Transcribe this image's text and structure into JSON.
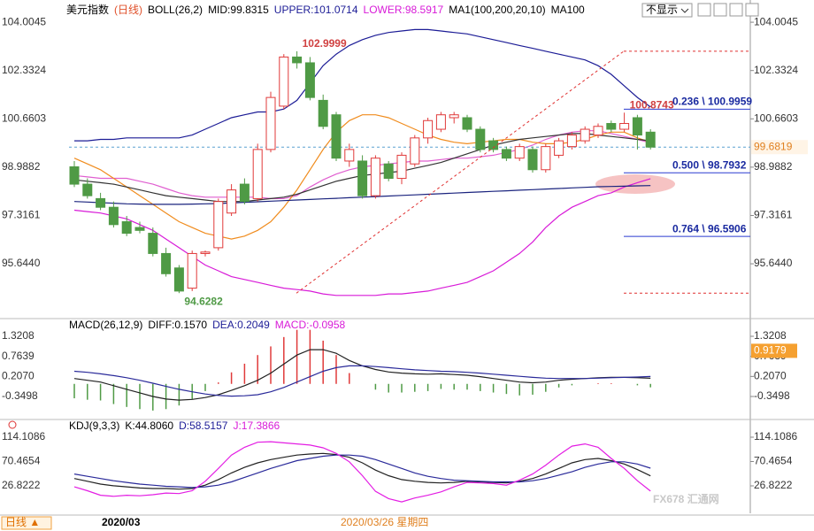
{
  "header": {
    "hide_button": "不显示",
    "period_button": "日线 ▲",
    "date_start": "2020/03",
    "date_cursor": "2020/03/26 星期四",
    "watermark": "FX678 汇通网"
  },
  "chart_data": [
    {
      "type": "candlestick",
      "legend": [
        {
          "text": "美元指数",
          "color": "#000000"
        },
        {
          "text": "(日线)",
          "color": "#e0502a"
        },
        {
          "text": "BOLL(26,2)",
          "color": "#000000"
        },
        {
          "text": "MID:99.8315",
          "color": "#000000"
        },
        {
          "text": "UPPER:101.0714",
          "color": "#1c1c96"
        },
        {
          "text": "LOWER:98.5917",
          "color": "#d81bd8"
        },
        {
          "text": "MA1(100,200,20,10)",
          "color": "#000000"
        },
        {
          "text": "MA100",
          "color": "#000000"
        }
      ],
      "ylim": [
        93.9,
        104.62
      ],
      "yticks": [
        104.0045,
        102.3324,
        100.6603,
        98.9882,
        97.3161,
        {
          "value": 95.644,
          "label": "95.6440"
        }
      ],
      "up_color": "#e03a3a",
      "down_color": "#4f9a45",
      "candles": [
        {
          "open": 99.0,
          "high": 99.2,
          "low": 98.3,
          "close": 98.4
        },
        {
          "open": 98.4,
          "high": 98.6,
          "low": 97.9,
          "close": 98.0
        },
        {
          "open": 97.9,
          "high": 98.1,
          "low": 97.5,
          "close": 97.6
        },
        {
          "open": 97.6,
          "high": 97.8,
          "low": 96.9,
          "close": 97.0
        },
        {
          "open": 97.1,
          "high": 97.3,
          "low": 96.6,
          "close": 96.7
        },
        {
          "open": 96.9,
          "high": 97.1,
          "low": 96.7,
          "close": 96.8
        },
        {
          "open": 96.7,
          "high": 96.9,
          "low": 95.9,
          "close": 96.0
        },
        {
          "open": 96.0,
          "high": 96.2,
          "low": 95.2,
          "close": 95.3
        },
        {
          "open": 95.5,
          "high": 95.6,
          "low": 94.6282,
          "close": 94.7
        },
        {
          "open": 94.8,
          "high": 96.1,
          "low": 94.7,
          "close": 96.0
        },
        {
          "open": 96.0,
          "high": 96.1,
          "low": 95.9,
          "close": 96.05
        },
        {
          "open": 96.2,
          "high": 97.9,
          "low": 96.1,
          "close": 97.8
        },
        {
          "open": 97.4,
          "high": 98.4,
          "low": 97.3,
          "close": 98.2
        },
        {
          "open": 98.4,
          "high": 98.6,
          "low": 97.7,
          "close": 97.8
        },
        {
          "open": 97.9,
          "high": 99.8,
          "low": 97.8,
          "close": 99.6
        },
        {
          "open": 99.6,
          "high": 101.6,
          "low": 99.5,
          "close": 101.4
        },
        {
          "open": 101.1,
          "high": 102.9,
          "low": 101.0,
          "close": 102.8
        },
        {
          "open": 102.8,
          "high": 102.9999,
          "low": 102.4,
          "close": 102.6
        },
        {
          "open": 102.6,
          "high": 102.8,
          "low": 101.3,
          "close": 101.4
        },
        {
          "open": 101.3,
          "high": 101.5,
          "low": 100.3,
          "close": 100.4
        },
        {
          "open": 100.8,
          "high": 100.9,
          "low": 99.2,
          "close": 99.3
        },
        {
          "open": 99.2,
          "high": 99.8,
          "low": 99.0,
          "close": 99.6
        },
        {
          "open": 99.2,
          "high": 99.4,
          "low": 97.9,
          "close": 98.0
        },
        {
          "open": 98.0,
          "high": 99.4,
          "low": 97.9,
          "close": 99.3
        },
        {
          "open": 99.1,
          "high": 99.2,
          "low": 98.5,
          "close": 98.6
        },
        {
          "open": 98.6,
          "high": 99.5,
          "low": 98.4,
          "close": 99.4
        },
        {
          "open": 99.1,
          "high": 100.1,
          "low": 99.0,
          "close": 100.0
        },
        {
          "open": 100.0,
          "high": 100.7,
          "low": 99.8,
          "close": 100.6
        },
        {
          "open": 100.3,
          "high": 100.9,
          "low": 100.2,
          "close": 100.8
        },
        {
          "open": 100.7,
          "high": 100.9,
          "low": 100.5,
          "close": 100.8
        },
        {
          "open": 100.7,
          "high": 100.8,
          "low": 100.2,
          "close": 100.3
        },
        {
          "open": 100.3,
          "high": 100.4,
          "low": 99.5,
          "close": 99.6
        },
        {
          "open": 99.9,
          "high": 100.0,
          "low": 99.5,
          "close": 99.6
        },
        {
          "open": 99.6,
          "high": 99.7,
          "low": 99.2,
          "close": 99.3
        },
        {
          "open": 99.3,
          "high": 99.8,
          "low": 99.2,
          "close": 99.7
        },
        {
          "open": 99.6,
          "high": 99.7,
          "low": 98.8,
          "close": 98.9
        },
        {
          "open": 98.9,
          "high": 99.8,
          "low": 98.8,
          "close": 99.7
        },
        {
          "open": 99.4,
          "high": 100.0,
          "low": 99.3,
          "close": 99.9
        },
        {
          "open": 99.7,
          "high": 100.2,
          "low": 99.6,
          "close": 100.1
        },
        {
          "open": 99.9,
          "high": 100.4,
          "low": 99.8,
          "close": 100.3
        },
        {
          "open": 100.1,
          "high": 100.5,
          "low": 100.0,
          "close": 100.4
        },
        {
          "open": 100.5,
          "high": 100.6,
          "low": 100.2,
          "close": 100.3
        },
        {
          "open": 100.3,
          "high": 100.8743,
          "low": 100.2,
          "close": 100.5
        },
        {
          "open": 100.7,
          "high": 100.8,
          "low": 99.6,
          "close": 100.1
        },
        {
          "open": 100.2,
          "high": 100.3,
          "low": 99.6,
          "close": 99.6819
        }
      ],
      "series": [
        {
          "color": "#1c1c96",
          "values": [
            99.9,
            99.9,
            99.95,
            99.95,
            100.0,
            100.0,
            100.0,
            100.0,
            100.0,
            100.1,
            100.3,
            100.5,
            100.7,
            100.8,
            100.9,
            100.9,
            101.0,
            101.3,
            101.9,
            102.5,
            102.9,
            103.2,
            103.4,
            103.55,
            103.65,
            103.7,
            103.75,
            103.75,
            103.7,
            103.65,
            103.6,
            103.5,
            103.4,
            103.3,
            103.2,
            103.1,
            103.0,
            102.9,
            102.8,
            102.7,
            102.5,
            102.2,
            101.8,
            101.4,
            101.07
          ]
        },
        {
          "color": "#d81bd8",
          "values": [
            97.5,
            97.45,
            97.4,
            97.3,
            97.2,
            97.0,
            96.8,
            96.5,
            96.2,
            95.9,
            95.6,
            95.4,
            95.2,
            95.1,
            95.0,
            94.9,
            94.8,
            94.75,
            94.7,
            94.6,
            94.55,
            94.55,
            94.55,
            94.55,
            94.6,
            94.6,
            94.65,
            94.7,
            94.8,
            94.9,
            95.0,
            95.2,
            95.4,
            95.7,
            96.0,
            96.4,
            96.9,
            97.3,
            97.6,
            97.8,
            98.0,
            98.1,
            98.3,
            98.45,
            98.59
          ]
        },
        {
          "color": "#e05fd0",
          "values": [
            98.7,
            98.65,
            98.6,
            98.6,
            98.6,
            98.5,
            98.4,
            98.25,
            98.1,
            98.0,
            97.95,
            97.95,
            97.95,
            97.95,
            97.95,
            97.9,
            97.9,
            98.0,
            98.3,
            98.55,
            98.75,
            98.9,
            99.0,
            99.05,
            99.1,
            99.15,
            99.2,
            99.2,
            99.25,
            99.3,
            99.3,
            99.35,
            99.4,
            99.5,
            99.6,
            99.75,
            99.95,
            100.1,
            100.2,
            100.25,
            100.25,
            100.15,
            100.05,
            99.95,
            99.83
          ]
        },
        {
          "color": "#f08c1e",
          "values": [
            99.3,
            99.1,
            98.9,
            98.6,
            98.3,
            98.0,
            97.7,
            97.4,
            97.1,
            96.9,
            96.7,
            96.6,
            96.5,
            96.6,
            96.8,
            97.1,
            97.6,
            98.2,
            98.9,
            99.6,
            100.2,
            100.6,
            100.8,
            100.8,
            100.7,
            100.5,
            100.3,
            100.1,
            99.95,
            99.85,
            99.8,
            99.85,
            99.9,
            99.95,
            99.95,
            99.85,
            99.8,
            99.8,
            99.85,
            99.95,
            100.1,
            100.2,
            100.2,
            100.0,
            99.85
          ]
        },
        {
          "color": "#333333",
          "values": [
            98.55,
            98.5,
            98.45,
            98.4,
            98.3,
            98.2,
            98.1,
            98.0,
            97.95,
            97.9,
            97.85,
            97.8,
            97.8,
            97.8,
            97.85,
            97.9,
            97.95,
            98.05,
            98.2,
            98.35,
            98.5,
            98.6,
            98.7,
            98.75,
            98.8,
            98.85,
            98.95,
            99.05,
            99.15,
            99.3,
            99.45,
            99.6,
            99.75,
            99.85,
            99.95,
            100.0,
            100.05,
            100.1,
            100.15,
            100.15,
            100.1,
            100.05,
            100.0,
            99.95,
            99.9
          ]
        },
        {
          "color": "#1a237e",
          "values": [
            97.8,
            97.78,
            97.76,
            97.74,
            97.72,
            97.71,
            97.7,
            97.7,
            97.7,
            97.71,
            97.72,
            97.73,
            97.75,
            97.77,
            97.79,
            97.81,
            97.83,
            97.85,
            97.87,
            97.89,
            97.91,
            97.93,
            97.95,
            97.97,
            97.99,
            98.01,
            98.03,
            98.05,
            98.07,
            98.09,
            98.11,
            98.13,
            98.15,
            98.17,
            98.19,
            98.21,
            98.23,
            98.25,
            98.27,
            98.29,
            98.31,
            98.32,
            98.33,
            98.34,
            98.35
          ]
        }
      ],
      "last_price": 99.6819,
      "annotations": [
        102.9999,
        94.6282,
        100.8743
      ],
      "fib_levels": [
        {
          "value": 100.9959,
          "label": "0.236 \\ 100.9959"
        },
        {
          "value": 98.7932,
          "label": "0.500 \\ 98.7932"
        },
        {
          "value": 96.5906,
          "label": "0.764 \\ 96.5906"
        }
      ]
    },
    {
      "type": "macd",
      "legend": [
        {
          "text": "MACD(26,12,9)",
          "color": "#000000"
        },
        {
          "text": "DIFF:0.1570",
          "color": "#000000"
        },
        {
          "text": "DEA:0.2049",
          "color": "#1c1c96"
        },
        {
          "text": "MACD:-0.0958",
          "color": "#d81bd8"
        }
      ],
      "ylim": [
        -0.89,
        1.689
      ],
      "yticks": [
        1.3208,
        0.7639,
        {
          "value": 0.207,
          "label": "0.2070"
        },
        -0.3498
      ],
      "badge": 0.9179,
      "up_color": "#e03a3a",
      "down_color": "#4f9a45",
      "histogram": [
        -0.4,
        -0.44,
        -0.46,
        -0.56,
        -0.64,
        -0.7,
        -0.74,
        -0.7,
        -0.6,
        -0.42,
        -0.2,
        0.04,
        0.32,
        0.56,
        0.8,
        1.04,
        1.3,
        1.5,
        1.5,
        1.2,
        0.8,
        0.3,
        0,
        -0.16,
        -0.24,
        -0.24,
        -0.22,
        -0.2,
        -0.14,
        -0.16,
        -0.16,
        -0.2,
        -0.24,
        -0.28,
        -0.32,
        -0.3,
        -0.22,
        -0.1,
        -0.04,
        0,
        0.02,
        0.02,
        0,
        -0.04,
        -0.0958
      ],
      "series": [
        {
          "color": "#222222",
          "values": [
            0.15,
            0.1,
            0.05,
            -0.05,
            -0.15,
            -0.25,
            -0.35,
            -0.42,
            -0.45,
            -0.43,
            -0.38,
            -0.3,
            -0.18,
            -0.05,
            0.1,
            0.3,
            0.55,
            0.8,
            0.95,
            0.95,
            0.85,
            0.65,
            0.5,
            0.4,
            0.33,
            0.3,
            0.28,
            0.27,
            0.28,
            0.26,
            0.24,
            0.2,
            0.15,
            0.1,
            0.05,
            0.03,
            0.05,
            0.1,
            0.13,
            0.15,
            0.17,
            0.18,
            0.18,
            0.17,
            0.157
          ]
        },
        {
          "color": "#2a2a9a",
          "values": [
            0.35,
            0.32,
            0.28,
            0.23,
            0.17,
            0.1,
            0.02,
            -0.07,
            -0.15,
            -0.22,
            -0.28,
            -0.32,
            -0.34,
            -0.33,
            -0.3,
            -0.22,
            -0.1,
            0.05,
            0.2,
            0.35,
            0.45,
            0.5,
            0.5,
            0.48,
            0.45,
            0.42,
            0.39,
            0.37,
            0.35,
            0.34,
            0.32,
            0.3,
            0.27,
            0.24,
            0.21,
            0.18,
            0.16,
            0.15,
            0.15,
            0.15,
            0.16,
            0.17,
            0.18,
            0.19,
            0.2049
          ]
        }
      ]
    },
    {
      "type": "kdj",
      "legend": [
        {
          "text": "KDJ(9,3,3)",
          "color": "#000000"
        },
        {
          "text": "K:44.8060",
          "color": "#000000"
        },
        {
          "text": "D:58.5157",
          "color": "#1c1c96"
        },
        {
          "text": "J:17.3866",
          "color": "#d81bd8"
        }
      ],
      "ylim": [
        -22.4,
        139.5
      ],
      "yticks": [
        114.1086,
        70.4654,
        26.8222
      ],
      "series": [
        {
          "color": "#222222",
          "values": [
            40,
            35,
            30,
            27,
            25,
            23,
            22,
            22,
            21,
            22,
            28,
            38,
            50,
            60,
            68,
            74,
            78,
            82,
            84,
            85,
            83,
            78,
            68,
            55,
            45,
            38,
            35,
            33,
            32,
            33,
            35,
            34,
            33,
            32,
            35,
            40,
            48,
            58,
            68,
            74,
            76,
            72,
            66,
            56,
            44.806
          ]
        },
        {
          "color": "#2a2a9a",
          "values": [
            48,
            44,
            40,
            36,
            33,
            30,
            28,
            26,
            25,
            24,
            25,
            28,
            34,
            42,
            50,
            58,
            65,
            72,
            76,
            80,
            82,
            82,
            80,
            74,
            66,
            58,
            50,
            44,
            40,
            37,
            36,
            35,
            34,
            34,
            34,
            36,
            40,
            46,
            52,
            60,
            66,
            70,
            70,
            66,
            58.5157
          ]
        },
        {
          "color": "#e31de3",
          "values": [
            25,
            18,
            10,
            8,
            10,
            9,
            11,
            14,
            13,
            18,
            35,
            58,
            82,
            96,
            105,
            106,
            104,
            102,
            100,
            95,
            85,
            70,
            45,
            17,
            4,
            -2,
            5,
            10,
            16,
            25,
            33,
            32,
            31,
            28,
            37,
            48,
            64,
            82,
            98,
            102,
            96,
            76,
            58,
            36,
            17.3866
          ]
        }
      ]
    }
  ]
}
